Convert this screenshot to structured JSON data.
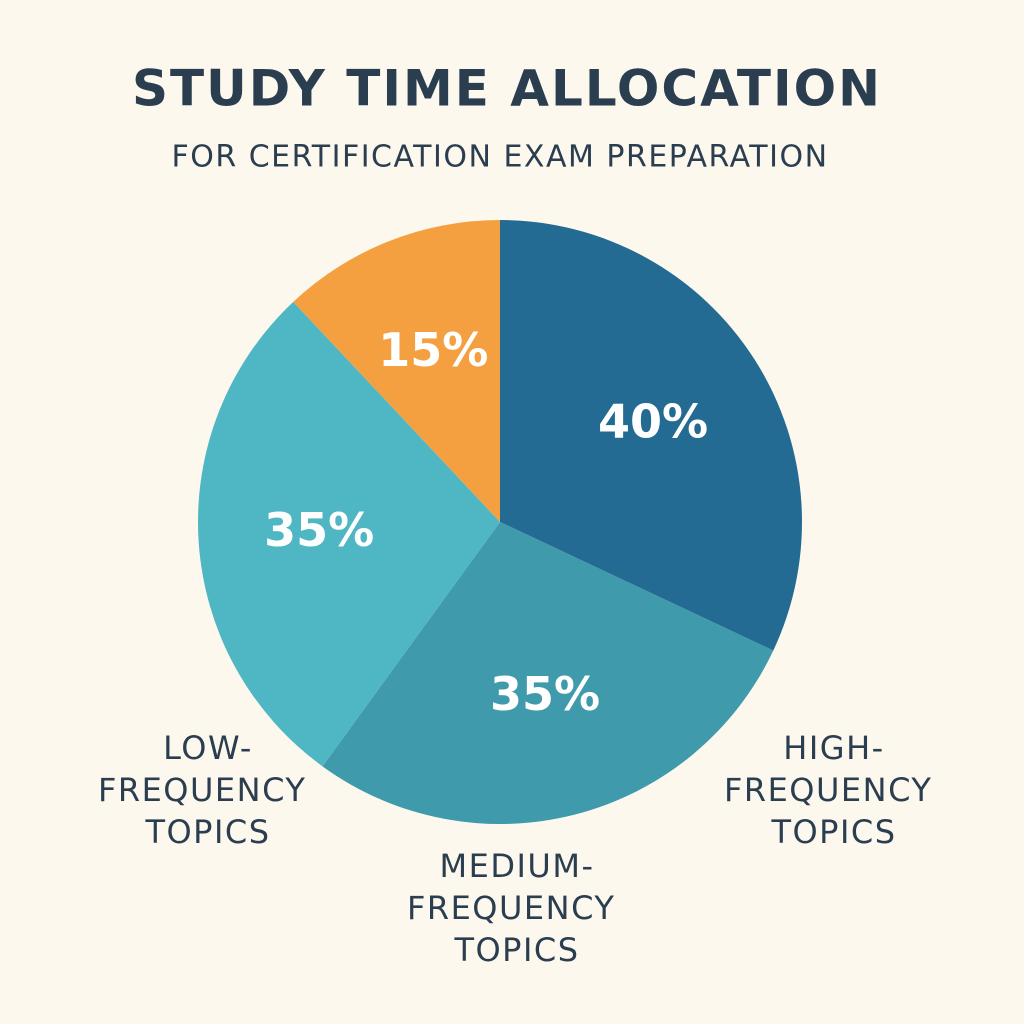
{
  "chart_data": {
    "type": "pie",
    "title": "STUDY TIME ALLOCATION",
    "subtitle": "FOR CERTIFICATION EXAM PREPARATION",
    "categories": [
      "HIGH-FREQUENCY TOPICS",
      "MEDIUM-FREQUENCY TOPICS",
      "LOW-FREQUENCY TOPICS",
      null
    ],
    "values": [
      40,
      35,
      35,
      15
    ],
    "value_labels": [
      "40%",
      "35%",
      "35%",
      "15%"
    ],
    "colors": [
      "#236b93",
      "#3f9aab",
      "#4fb6c4",
      "#f4a040"
    ]
  }
}
